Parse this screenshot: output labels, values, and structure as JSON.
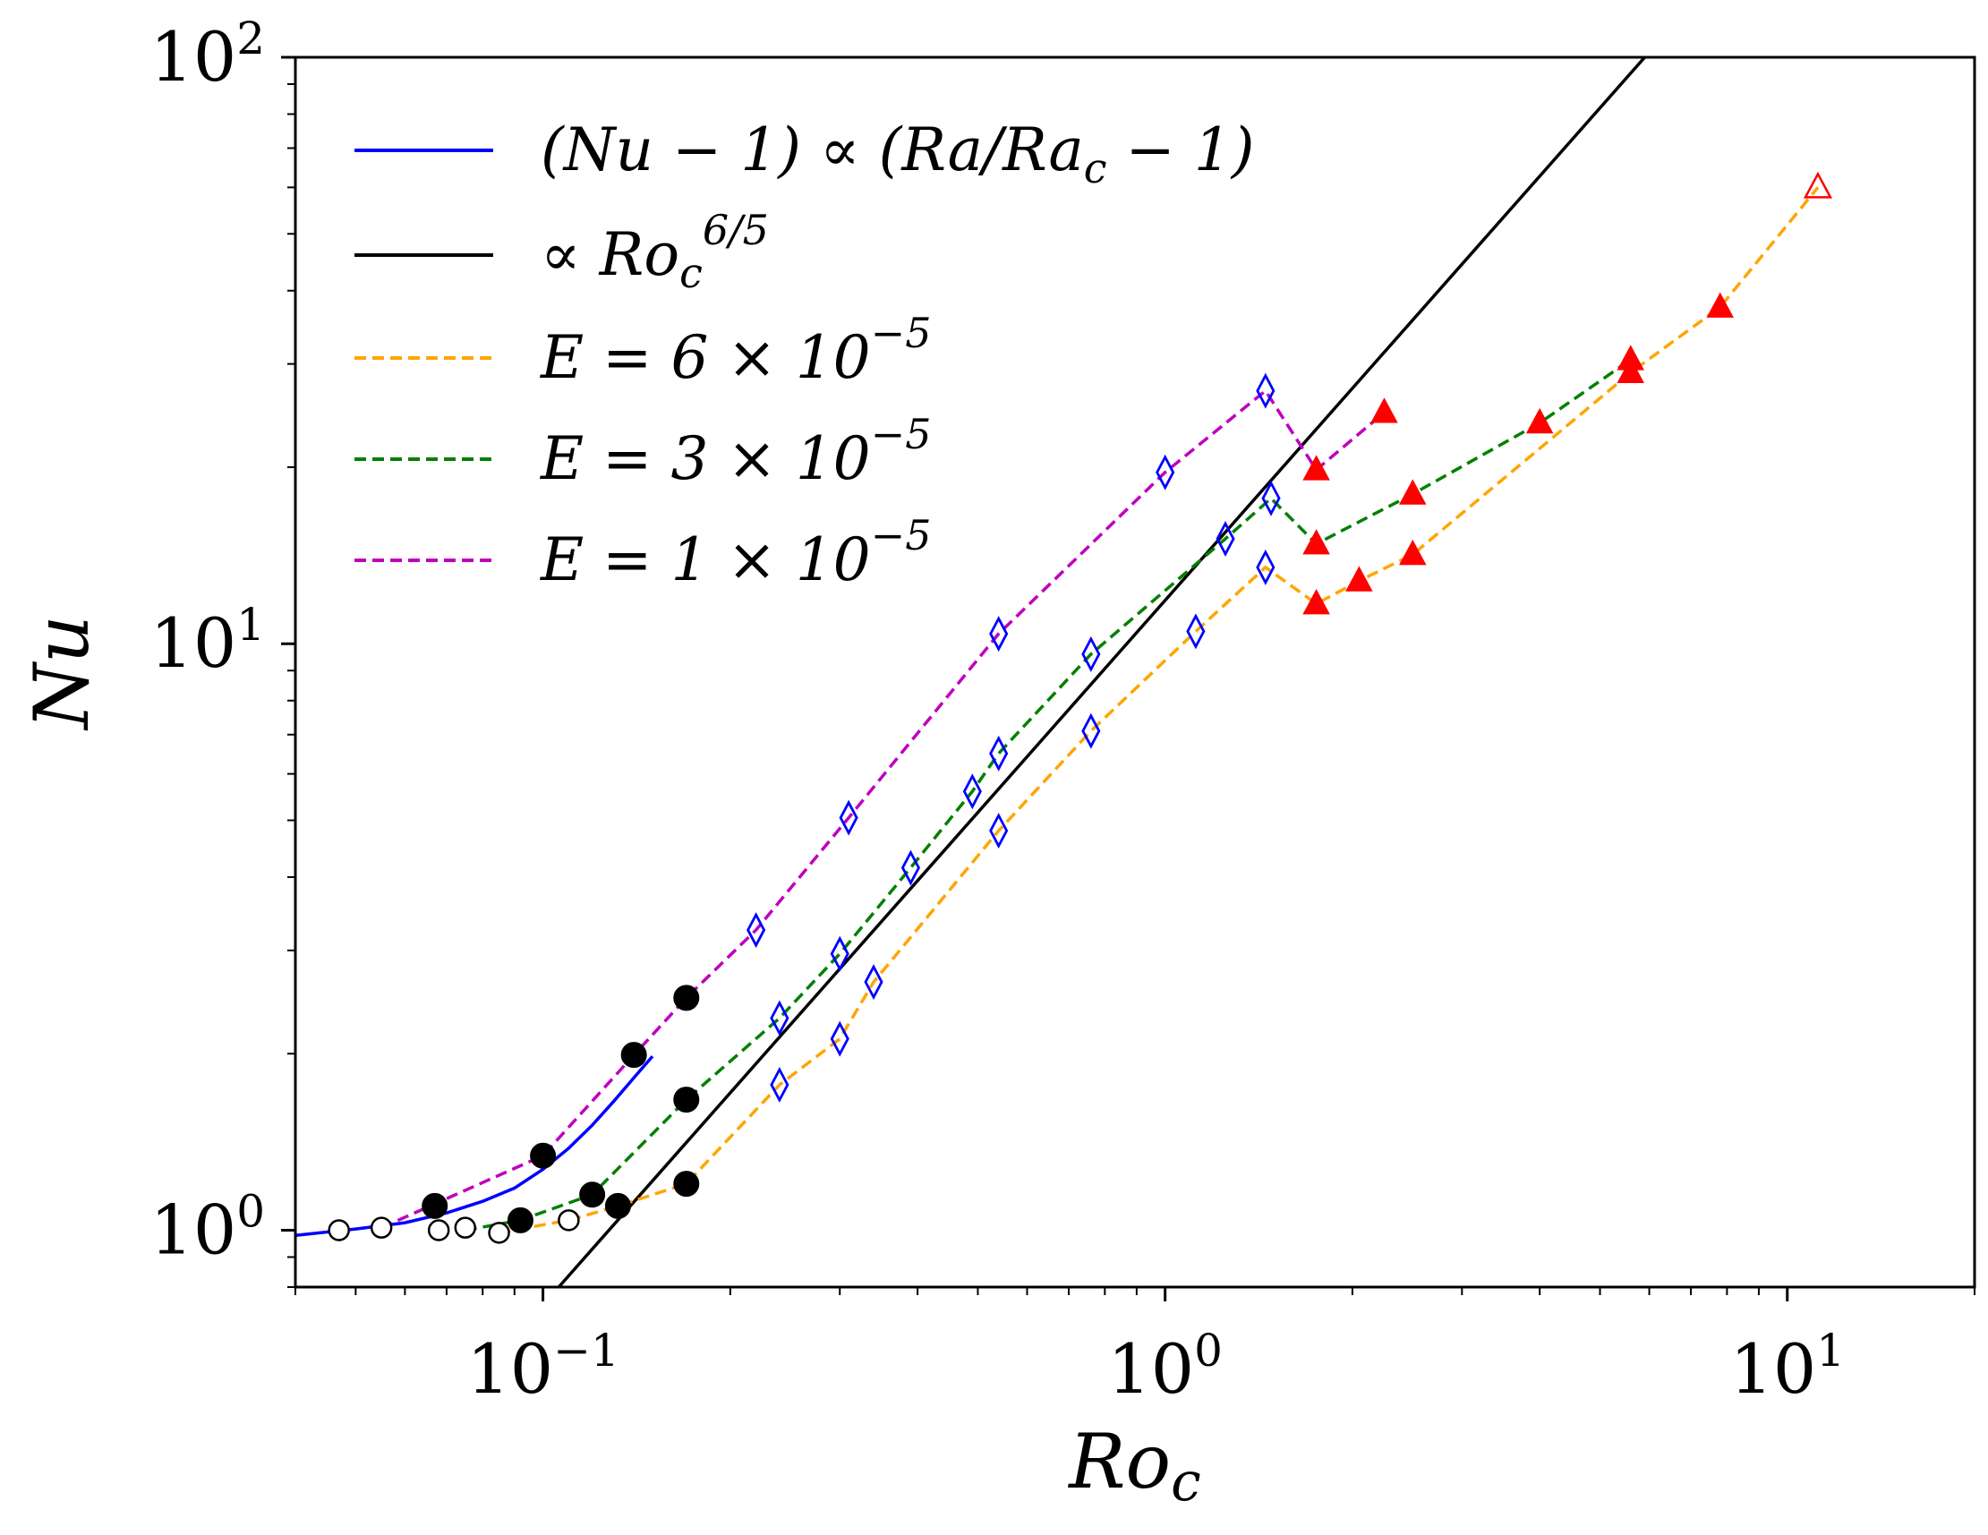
{
  "chart_data": {
    "type": "line",
    "xscale": "log",
    "yscale": "log",
    "xlabel": "Ro",
    "xlabel_sub": "c",
    "ylabel": "Nu",
    "xlim": [
      0.04,
      20
    ],
    "ylim": [
      0.8,
      100
    ],
    "x_ticks": [
      {
        "value": 0.1,
        "base": "10",
        "exp": "−1"
      },
      {
        "value": 1,
        "base": "10",
        "exp": "0"
      },
      {
        "value": 10,
        "base": "10",
        "exp": "1"
      }
    ],
    "y_ticks": [
      {
        "value": 1,
        "base": "10",
        "exp": "0"
      },
      {
        "value": 10,
        "base": "10",
        "exp": "1"
      },
      {
        "value": 100,
        "base": "10",
        "exp": "2"
      }
    ],
    "legend": {
      "position": "top-left",
      "entries": [
        {
          "label": "(Nu − 1) ∝ (Ra/Ra",
          "sub": "c",
          "tail": " − 1)",
          "color": "#0000ff",
          "dash": "solid"
        },
        {
          "label": "∝ Ro",
          "sub": "c",
          "sup": "6/5",
          "tail": "",
          "color": "#000000",
          "dash": "solid"
        },
        {
          "label": "E = 6 × 10",
          "sup": "−5",
          "tail": "",
          "color": "#ffa500",
          "dash": "dashed"
        },
        {
          "label": "E = 3 × 10",
          "sup": "−5",
          "tail": "",
          "color": "#008000",
          "dash": "dashed"
        },
        {
          "label": "E = 1 × 10",
          "sup": "−5",
          "tail": "",
          "color": "#bf00bf",
          "dash": "dashed"
        }
      ]
    },
    "series": [
      {
        "name": "(Nu-1) ∝ (Ra/Ra_c - 1)",
        "style": "solid",
        "color": "#0000ff",
        "x": [
          0.04,
          0.05,
          0.06,
          0.07,
          0.08,
          0.09,
          0.1,
          0.11,
          0.12,
          0.13,
          0.14,
          0.15
        ],
        "y": [
          0.98,
          1.005,
          1.03,
          1.07,
          1.12,
          1.18,
          1.27,
          1.38,
          1.51,
          1.66,
          1.82,
          1.98
        ]
      },
      {
        "name": "∝ Ro_c^(6/5)",
        "style": "solid",
        "color": "#000000",
        "x": [
          0.106,
          5.9
        ],
        "y": [
          0.8,
          100
        ]
      },
      {
        "name": "E = 6×10^-5",
        "style": "dashed",
        "color": "#ffa500",
        "x": [
          0.085,
          0.11,
          0.132,
          0.17,
          0.24,
          0.3,
          0.34,
          0.54,
          0.76,
          1.12,
          1.45,
          1.75,
          2.05,
          2.5,
          5.6,
          7.8,
          11.2
        ],
        "y": [
          0.99,
          1.04,
          1.1,
          1.2,
          1.77,
          2.12,
          2.65,
          4.8,
          7.1,
          10.5,
          13.5,
          11.7,
          12.8,
          14.2,
          29.0,
          37.5,
          60.0
        ]
      },
      {
        "name": "E = 3×10^-5",
        "style": "dashed",
        "color": "#008000",
        "x": [
          0.075,
          0.092,
          0.12,
          0.17,
          0.24,
          0.3,
          0.39,
          0.49,
          0.54,
          0.76,
          1.25,
          1.48,
          1.75,
          2.5,
          4.0,
          5.6
        ],
        "y": [
          1.0,
          1.04,
          1.15,
          1.67,
          2.3,
          2.96,
          4.15,
          5.6,
          6.5,
          9.6,
          15.1,
          17.7,
          14.8,
          18.0,
          23.8,
          30.5
        ]
      },
      {
        "name": "E = 1×10^-5",
        "style": "dashed",
        "color": "#bf00bf",
        "x": [
          0.055,
          0.1,
          0.14,
          0.17,
          0.22,
          0.31,
          0.54,
          1.0,
          1.45,
          1.75,
          2.25
        ],
        "y": [
          1.01,
          1.34,
          1.99,
          2.49,
          3.25,
          5.05,
          10.4,
          19.6,
          27.0,
          19.8,
          24.8
        ]
      },
      {
        "name": "open circles",
        "marker": "open-circle",
        "color": "#000000",
        "x": [
          0.047,
          0.055,
          0.068,
          0.075,
          0.085,
          0.11
        ],
        "y": [
          1.0,
          1.01,
          1.0,
          1.01,
          0.99,
          1.04
        ]
      },
      {
        "name": "filled circles",
        "marker": "filled-circle",
        "color": "#000000",
        "x": [
          0.067,
          0.092,
          0.1,
          0.12,
          0.132,
          0.14,
          0.17,
          0.17,
          0.17
        ],
        "y": [
          1.1,
          1.04,
          1.34,
          1.15,
          1.1,
          1.99,
          1.2,
          1.67,
          2.49
        ]
      },
      {
        "name": "open diamonds",
        "marker": "open-diamond",
        "color": "#0000ff",
        "x": [
          0.22,
          0.24,
          0.24,
          0.3,
          0.3,
          0.31,
          0.34,
          0.39,
          0.49,
          0.54,
          0.54,
          0.54,
          0.76,
          0.76,
          1.0,
          1.12,
          1.25,
          1.45,
          1.45,
          1.48
        ],
        "y": [
          3.25,
          2.3,
          1.77,
          2.96,
          2.12,
          5.05,
          2.65,
          4.15,
          5.6,
          6.5,
          4.8,
          10.4,
          9.6,
          7.1,
          19.6,
          10.5,
          15.1,
          13.5,
          27.0,
          17.7
        ]
      },
      {
        "name": "filled triangles",
        "marker": "filled-triangle",
        "color": "#ff0000",
        "x": [
          1.75,
          1.75,
          1.75,
          2.05,
          2.25,
          2.5,
          2.5,
          4.0,
          5.6,
          5.6,
          7.8
        ],
        "y": [
          19.8,
          14.8,
          11.7,
          12.8,
          24.8,
          18.0,
          14.2,
          23.8,
          30.5,
          29.0,
          37.5
        ]
      },
      {
        "name": "open triangle",
        "marker": "open-triangle",
        "color": "#ff0000",
        "x": [
          11.2
        ],
        "y": [
          60.0
        ]
      }
    ]
  }
}
